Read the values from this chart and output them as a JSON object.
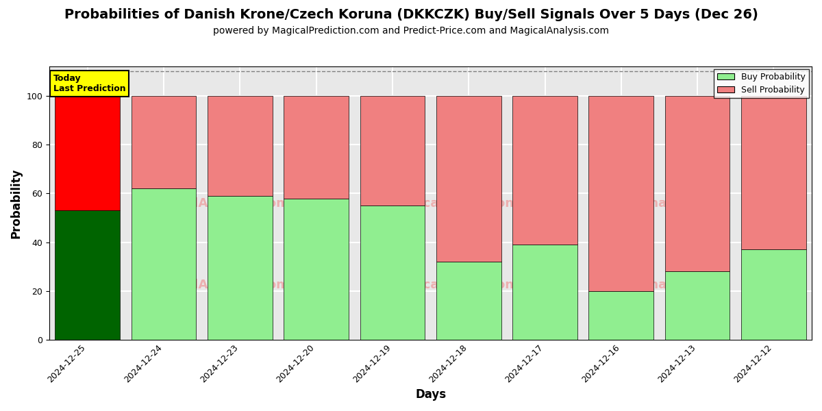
{
  "title": "Probabilities of Danish Krone/Czech Koruna (DKKCZK) Buy/Sell Signals Over 5 Days (Dec 26)",
  "subtitle": "powered by MagicalPrediction.com and Predict-Price.com and MagicalAnalysis.com",
  "xlabel": "Days",
  "ylabel": "Probability",
  "categories": [
    "2024-12-25",
    "2024-12-24",
    "2024-12-23",
    "2024-12-20",
    "2024-12-19",
    "2024-12-18",
    "2024-12-17",
    "2024-12-16",
    "2024-12-13",
    "2024-12-12"
  ],
  "buy_values": [
    53,
    62,
    59,
    58,
    55,
    32,
    39,
    20,
    28,
    37
  ],
  "sell_values": [
    47,
    38,
    41,
    42,
    45,
    68,
    61,
    80,
    72,
    63
  ],
  "today_buy_color": "#006400",
  "today_sell_color": "#ff0000",
  "other_buy_color": "#90EE90",
  "other_sell_color": "#F08080",
  "bar_edge_color": "#000000",
  "bg_color": "#e8e8e8",
  "ylim": [
    0,
    112
  ],
  "yticks": [
    0,
    20,
    40,
    60,
    80,
    100
  ],
  "dashed_line_y": 110,
  "legend_buy_label": "Buy Probability",
  "legend_sell_label": "Sell Probability",
  "today_label_text": "Today\nLast Prediction",
  "title_fontsize": 14,
  "subtitle_fontsize": 10,
  "label_fontsize": 12,
  "tick_fontsize": 9
}
